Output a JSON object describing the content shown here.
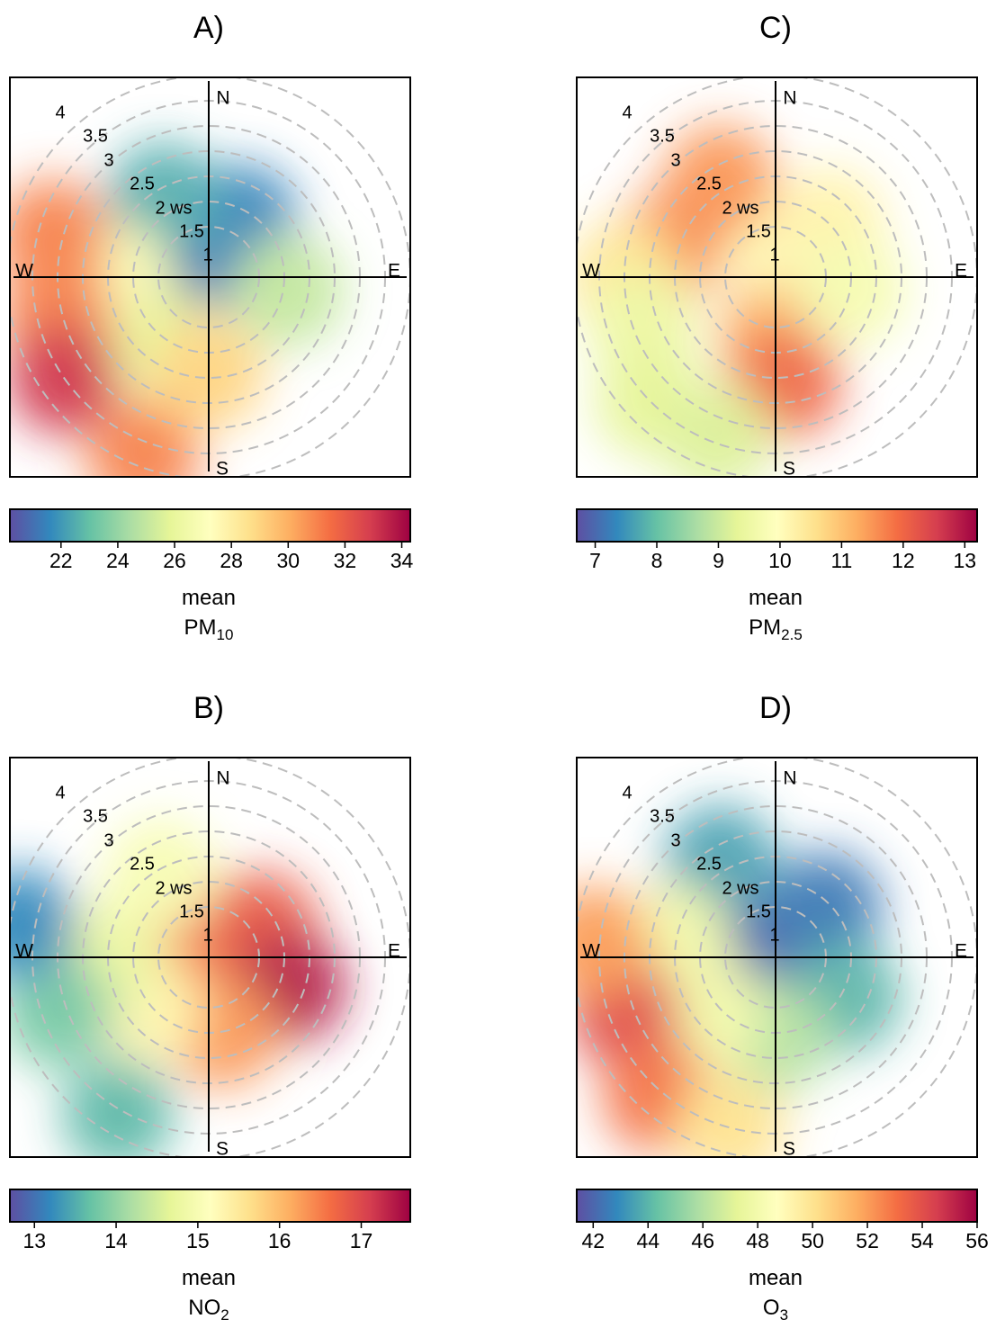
{
  "colors": {
    "frame": "#000000",
    "rings": "#bdbdbd",
    "palette": [
      "#5e4fa2",
      "#3288bd",
      "#66c2a5",
      "#abdda4",
      "#e6f598",
      "#ffffbf",
      "#fee08b",
      "#fdae61",
      "#f46d43",
      "#d53e4f",
      "#9e0142"
    ]
  },
  "chart_data": [
    {
      "type": "heatmap",
      "panel_label": "A)",
      "pollutant": {
        "base": "PM",
        "subscript": "10"
      },
      "statistic": "mean",
      "compass": [
        "N",
        "E",
        "S",
        "W"
      ],
      "ring_labels": [
        "1",
        "1.5",
        "2 ws",
        "2.5",
        "3",
        "3.5",
        "4"
      ],
      "wind_speed_rings": [
        1,
        1.5,
        2,
        2.5,
        3,
        3.5,
        4
      ],
      "scale": {
        "min": 20.2,
        "max": 34.3,
        "ticks": [
          "22",
          "24",
          "26",
          "28",
          "30",
          "32",
          "34"
        ]
      },
      "field": [
        {
          "dir": 0,
          "ws": 0.5,
          "value": 21
        },
        {
          "dir": 30,
          "ws": 1.3,
          "value": 21.5
        },
        {
          "dir": 330,
          "ws": 1.8,
          "value": 22.5
        },
        {
          "dir": 100,
          "ws": 1.6,
          "value": 25
        },
        {
          "dir": 270,
          "ws": 1.8,
          "value": 27
        },
        {
          "dir": 240,
          "ws": 2.3,
          "value": 27
        },
        {
          "dir": 210,
          "ws": 1.6,
          "value": 26
        },
        {
          "dir": 255,
          "ws": 3.1,
          "value": 31
        },
        {
          "dir": 235,
          "ws": 3.5,
          "value": 33
        },
        {
          "dir": 200,
          "ws": 3.8,
          "value": 31
        },
        {
          "dir": 180,
          "ws": 1.9,
          "value": 29
        },
        {
          "dir": 285,
          "ws": 3.2,
          "value": 31
        }
      ]
    },
    {
      "type": "heatmap",
      "panel_label": "C)",
      "pollutant": {
        "base": "PM",
        "subscript": "2.5"
      },
      "statistic": "mean",
      "compass": [
        "N",
        "E",
        "S",
        "W"
      ],
      "ring_labels": [
        "1",
        "1.5",
        "2 ws",
        "2.5",
        "3",
        "3.5",
        "4"
      ],
      "wind_speed_rings": [
        1,
        1.5,
        2,
        2.5,
        3,
        3.5,
        4
      ],
      "scale": {
        "min": 6.7,
        "max": 13.2,
        "ticks": [
          "7",
          "8",
          "9",
          "10",
          "11",
          "12",
          "13"
        ]
      },
      "field": [
        {
          "dir": 0,
          "ws": 0.5,
          "value": 10
        },
        {
          "dir": 45,
          "ws": 1.5,
          "value": 10.2
        },
        {
          "dir": 180,
          "ws": 1.2,
          "value": 11.2
        },
        {
          "dir": 175,
          "ws": 2.1,
          "value": 12
        },
        {
          "dir": 330,
          "ws": 2.2,
          "value": 11.5
        },
        {
          "dir": 285,
          "ws": 2.2,
          "value": 11.6
        },
        {
          "dir": 270,
          "ws": 3.0,
          "value": 10.5
        },
        {
          "dir": 250,
          "ws": 2.8,
          "value": 9.5
        },
        {
          "dir": 225,
          "ws": 3.5,
          "value": 9.3
        },
        {
          "dir": 200,
          "ws": 3.4,
          "value": 9.2
        },
        {
          "dir": 100,
          "ws": 1.5,
          "value": 9.7
        }
      ]
    },
    {
      "type": "heatmap",
      "panel_label": "B)",
      "pollutant": {
        "base": "NO",
        "subscript": "2"
      },
      "statistic": "mean",
      "compass": [
        "N",
        "E",
        "S",
        "W"
      ],
      "ring_labels": [
        "1",
        "1.5",
        "2 ws",
        "2.5",
        "3",
        "3.5",
        "4"
      ],
      "wind_speed_rings": [
        1,
        1.5,
        2,
        2.5,
        3,
        3.5,
        4
      ],
      "scale": {
        "min": 12.7,
        "max": 17.6,
        "ticks": [
          "13",
          "14",
          "15",
          "16",
          "17"
        ]
      },
      "field": [
        {
          "dir": 0,
          "ws": 0.5,
          "value": 16.5
        },
        {
          "dir": 60,
          "ws": 1.2,
          "value": 16.8
        },
        {
          "dir": 110,
          "ws": 1.7,
          "value": 17.4
        },
        {
          "dir": 170,
          "ws": 1.5,
          "value": 16.3
        },
        {
          "dir": 230,
          "ws": 1.6,
          "value": 15.3
        },
        {
          "dir": 270,
          "ws": 2.0,
          "value": 14.8
        },
        {
          "dir": 330,
          "ws": 1.9,
          "value": 15.0
        },
        {
          "dir": 250,
          "ws": 3.2,
          "value": 13.8
        },
        {
          "dir": 210,
          "ws": 3.6,
          "value": 13.6
        },
        {
          "dir": 280,
          "ws": 3.8,
          "value": 13.2
        }
      ]
    },
    {
      "type": "heatmap",
      "panel_label": "D)",
      "pollutant": {
        "base": "O",
        "subscript": "3"
      },
      "statistic": "mean",
      "compass": [
        "N",
        "E",
        "S",
        "W"
      ],
      "ring_labels": [
        "1",
        "1.5",
        "2 ws",
        "2.5",
        "3",
        "3.5",
        "4"
      ],
      "wind_speed_rings": [
        1,
        1.5,
        2,
        2.5,
        3,
        3.5,
        4
      ],
      "scale": {
        "min": 41.4,
        "max": 56.0,
        "ticks": [
          "42",
          "44",
          "46",
          "48",
          "50",
          "52",
          "54",
          "56"
        ]
      },
      "field": [
        {
          "dir": 0,
          "ws": 0.5,
          "value": 42
        },
        {
          "dir": 45,
          "ws": 1.4,
          "value": 42.5
        },
        {
          "dir": 330,
          "ws": 2.2,
          "value": 43.5
        },
        {
          "dir": 120,
          "ws": 1.6,
          "value": 44
        },
        {
          "dir": 180,
          "ws": 1.6,
          "value": 46
        },
        {
          "dir": 230,
          "ws": 1.7,
          "value": 48
        },
        {
          "dir": 280,
          "ws": 2.0,
          "value": 48
        },
        {
          "dir": 250,
          "ws": 3.2,
          "value": 54
        },
        {
          "dir": 220,
          "ws": 3.6,
          "value": 53
        },
        {
          "dir": 275,
          "ws": 3.6,
          "value": 52
        },
        {
          "dir": 195,
          "ws": 3.5,
          "value": 50
        }
      ]
    }
  ]
}
